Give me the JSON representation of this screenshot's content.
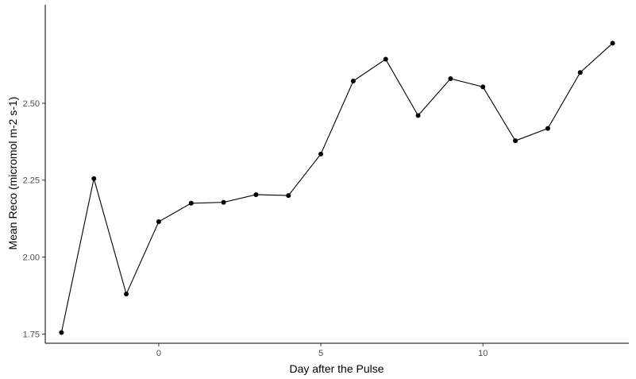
{
  "chart_data": {
    "type": "line",
    "title": "",
    "xlabel": "Day after the Pulse",
    "ylabel": "Mean Reco (micromol m-2 s-1)",
    "x": [
      -3,
      -2,
      -1,
      0,
      1,
      2,
      3,
      4,
      5,
      6,
      7,
      8,
      9,
      10,
      11,
      12,
      13,
      14
    ],
    "series": [
      {
        "values": [
          1.755,
          2.255,
          1.88,
          2.115,
          2.175,
          2.178,
          2.203,
          2.2,
          2.335,
          2.572,
          2.643,
          2.46,
          2.58,
          2.553,
          2.378,
          2.418,
          2.6,
          2.695
        ]
      }
    ],
    "xlim": [
      -3.5,
      14.5
    ],
    "ylim": [
      1.72,
      2.82
    ],
    "x_ticks": [
      0,
      5,
      10
    ],
    "x_tick_labels": [
      "0",
      "5",
      "10"
    ],
    "y_ticks": [
      1.75,
      2.0,
      2.25,
      2.5
    ],
    "y_tick_labels": [
      "1.75",
      "2.00",
      "2.25",
      "2.50"
    ],
    "grid": false,
    "line_color": "#000000",
    "point_color": "#000000"
  }
}
